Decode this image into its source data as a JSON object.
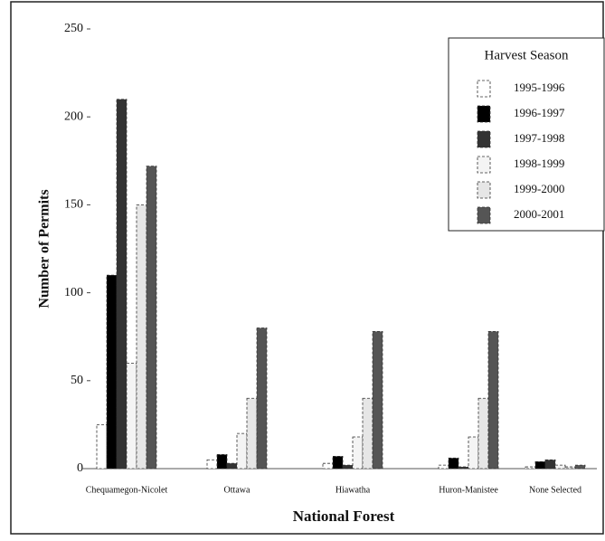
{
  "chart_data": {
    "type": "bar",
    "xlabel": "National Forest",
    "ylabel": "Number of Permits",
    "categories": [
      "Chequamegon-Nicolet",
      "Ottawa",
      "Hiawatha",
      "Huron-Manistee",
      "None Selected"
    ],
    "legend_title": "Harvest Season",
    "legend_position": "upper right",
    "series": [
      {
        "name": "1995-1996",
        "color": "#ffffff",
        "values": [
          25,
          5,
          3,
          2,
          1
        ]
      },
      {
        "name": "1996-1997",
        "color": "#000000",
        "values": [
          110,
          8,
          7,
          6,
          4
        ]
      },
      {
        "name": "1997-1998",
        "color": "#333333",
        "values": [
          210,
          3,
          2,
          1,
          5
        ]
      },
      {
        "name": "1998-1999",
        "color": "#f4f4f4",
        "values": [
          60,
          20,
          18,
          18,
          2
        ]
      },
      {
        "name": "1999-2000",
        "color": "#e6e6e6",
        "values": [
          150,
          40,
          40,
          40,
          1
        ]
      },
      {
        "name": "2000-2001",
        "color": "#555555",
        "values": [
          172,
          80,
          78,
          78,
          2
        ]
      }
    ],
    "ylim": [
      0,
      250
    ],
    "yticks": [
      0,
      50,
      100,
      150,
      200,
      250
    ]
  }
}
